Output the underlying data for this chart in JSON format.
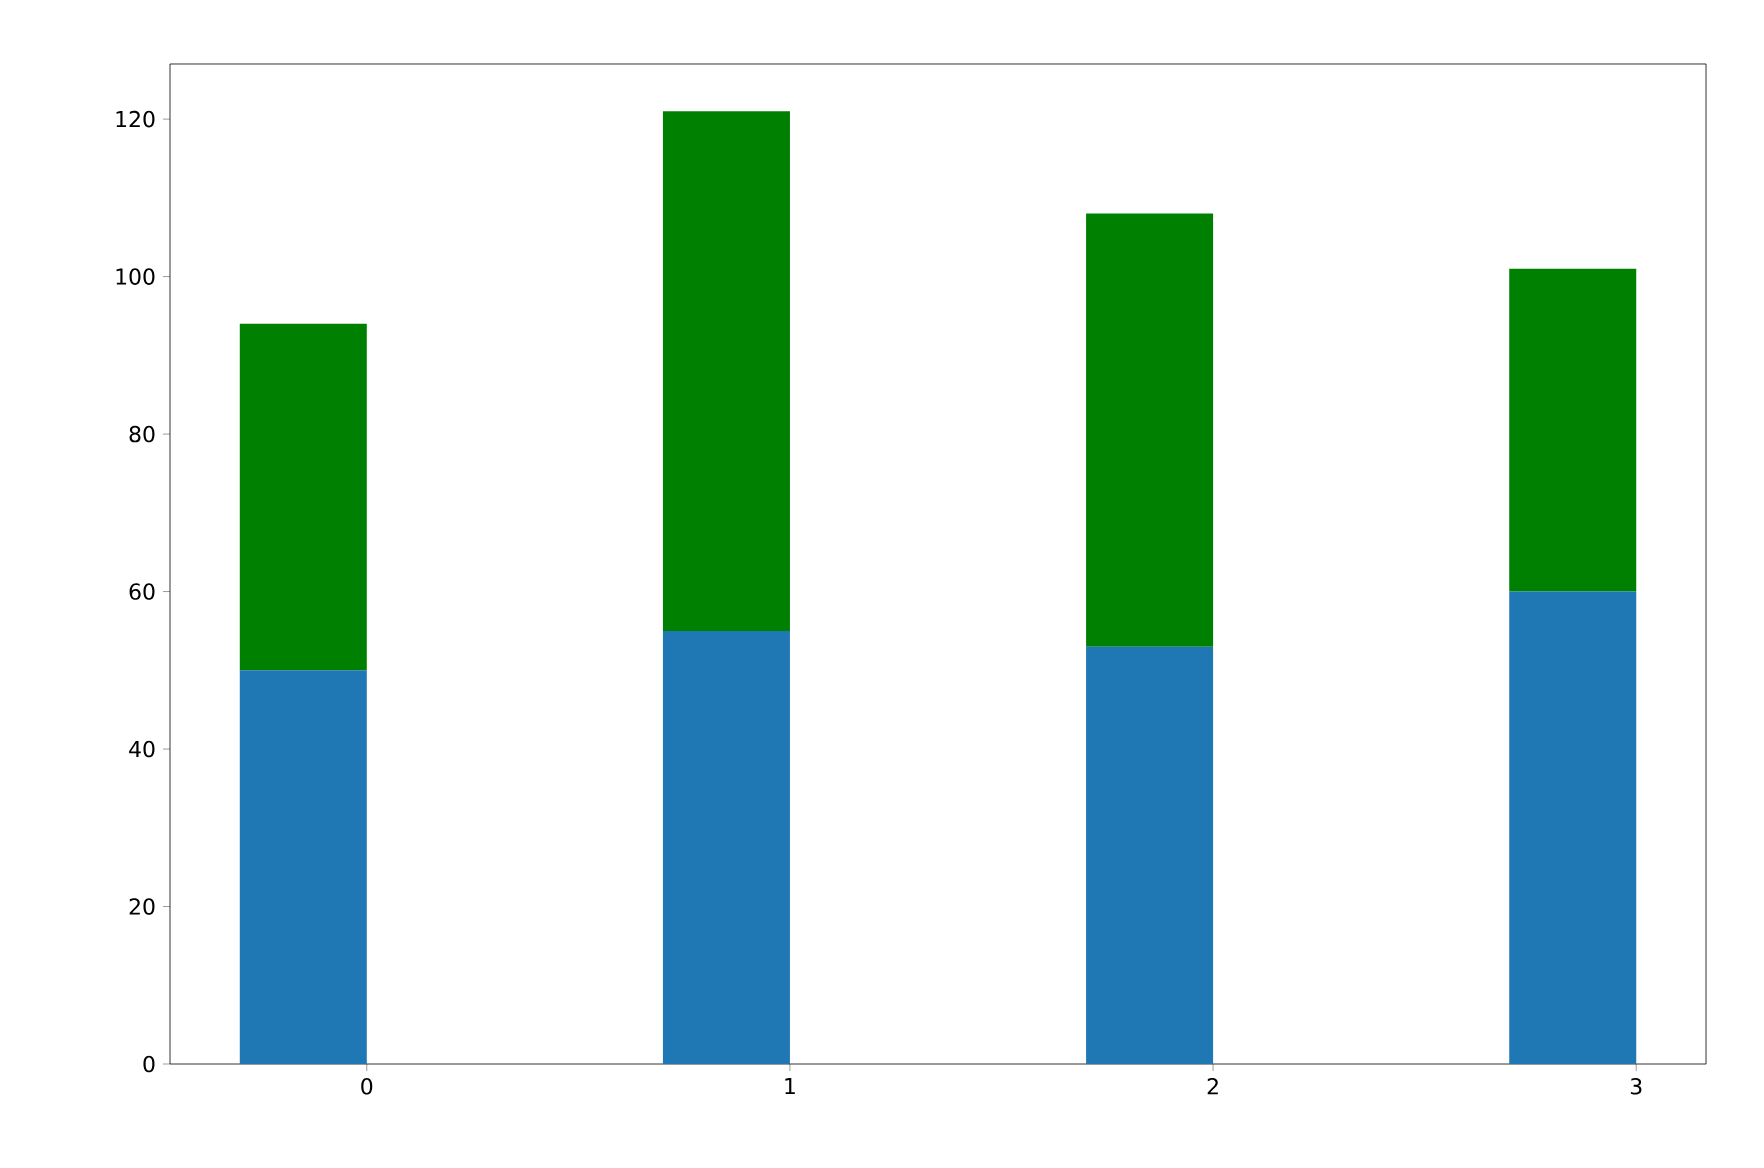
{
  "chart_data": {
    "type": "bar",
    "stacked": true,
    "x": [
      -0.15,
      0.85,
      1.85,
      2.85
    ],
    "series": [
      {
        "color": "#1f77b4",
        "values": [
          50,
          55,
          53,
          60
        ]
      },
      {
        "color": "#008000",
        "values": [
          44,
          66,
          55,
          41
        ]
      }
    ],
    "xlim": [
      -0.465,
      3.165
    ],
    "xticks": [
      0,
      1,
      2,
      3
    ],
    "ylim": [
      0,
      127
    ],
    "yticks": [
      0,
      20,
      40,
      60,
      80,
      100,
      120
    ],
    "grid": false
  }
}
